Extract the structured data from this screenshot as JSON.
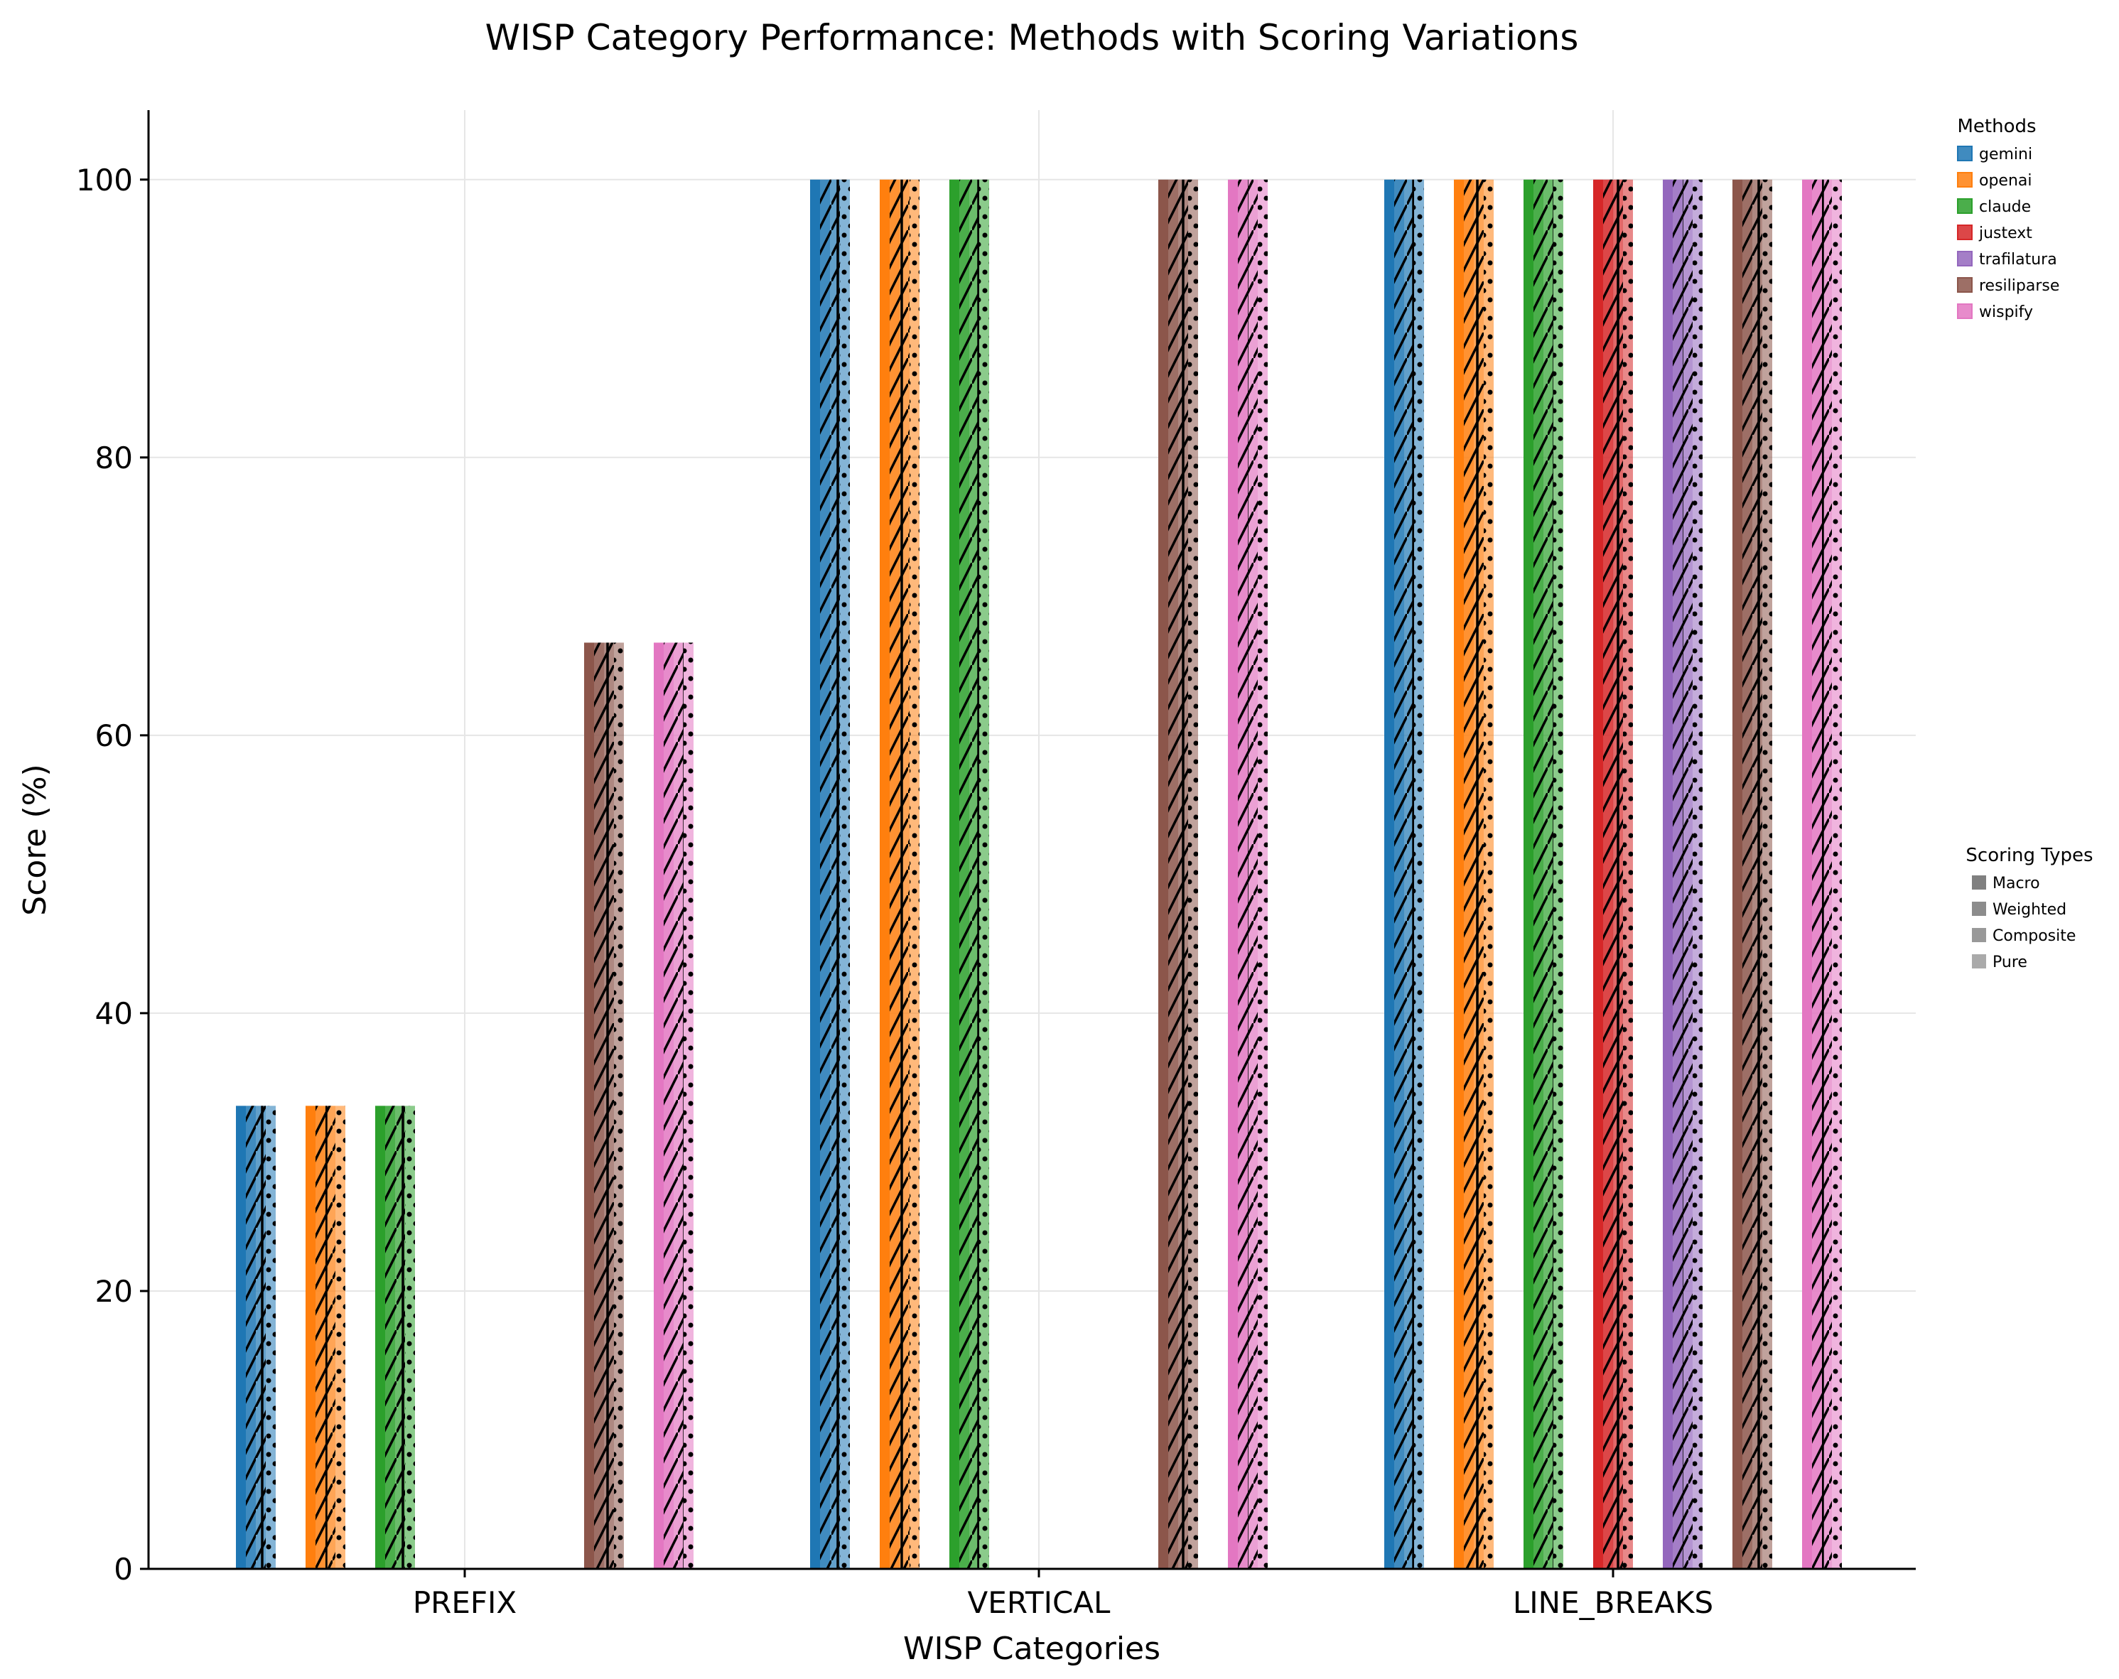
{
  "chart_data": {
    "type": "bar",
    "title": "WISP Category Performance: Methods with Scoring Variations",
    "xlabel": "WISP Categories",
    "ylabel": "Score (%)",
    "ylim": [
      0,
      105
    ],
    "yticks": [
      0,
      20,
      40,
      60,
      80,
      100
    ],
    "grid": true,
    "categories": [
      "PREFIX",
      "VERTICAL",
      "LINE_BREAKS"
    ],
    "methods_legend_title": "Methods",
    "methods_legend_position": "top-right",
    "scoring_legend_title": "Scoring Types",
    "scoring_legend_position": "right",
    "scoring_types": [
      "Macro",
      "Weighted",
      "Composite",
      "Pure"
    ],
    "series": [
      {
        "name": "gemini",
        "color": "#1f77b4",
        "values": {
          "Macro": [
            33.33,
            100,
            100
          ],
          "Weighted": [
            33.33,
            100,
            100
          ],
          "Composite": [
            33.33,
            100,
            100
          ],
          "Pure": [
            33.33,
            100,
            100
          ]
        }
      },
      {
        "name": "openai",
        "color": "#ff7f0e",
        "values": {
          "Macro": [
            33.33,
            100,
            100
          ],
          "Weighted": [
            33.33,
            100,
            100
          ],
          "Composite": [
            33.33,
            100,
            100
          ],
          "Pure": [
            33.33,
            100,
            100
          ]
        }
      },
      {
        "name": "claude",
        "color": "#2ca02c",
        "values": {
          "Macro": [
            33.33,
            100,
            100
          ],
          "Weighted": [
            33.33,
            100,
            100
          ],
          "Composite": [
            33.33,
            100,
            100
          ],
          "Pure": [
            33.33,
            100,
            100
          ]
        }
      },
      {
        "name": "justext",
        "color": "#d62728",
        "values": {
          "Macro": [
            0,
            0,
            100
          ],
          "Weighted": [
            0,
            0,
            100
          ],
          "Composite": [
            0,
            0,
            100
          ],
          "Pure": [
            0,
            0,
            100
          ]
        }
      },
      {
        "name": "trafilatura",
        "color": "#9467bd",
        "values": {
          "Macro": [
            0,
            0,
            100
          ],
          "Weighted": [
            0,
            0,
            100
          ],
          "Composite": [
            0,
            0,
            100
          ],
          "Pure": [
            0,
            0,
            100
          ]
        }
      },
      {
        "name": "resiliparse",
        "color": "#8c564b",
        "values": {
          "Macro": [
            66.67,
            100,
            100
          ],
          "Weighted": [
            66.67,
            100,
            100
          ],
          "Composite": [
            66.67,
            100,
            100
          ],
          "Pure": [
            66.67,
            100,
            100
          ]
        }
      },
      {
        "name": "wispify",
        "color": "#e377c2",
        "values": {
          "Macro": [
            66.67,
            100,
            100
          ],
          "Weighted": [
            66.67,
            100,
            100
          ],
          "Composite": [
            66.67,
            100,
            100
          ],
          "Pure": [
            66.67,
            100,
            100
          ]
        }
      }
    ]
  }
}
